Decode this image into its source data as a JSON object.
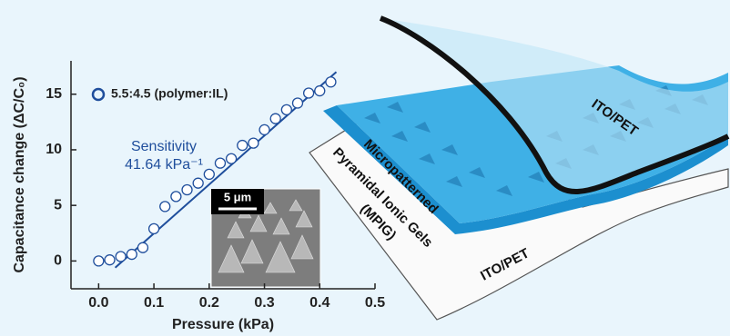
{
  "chart_data": {
    "type": "scatter",
    "x_label": "Pressure (kPa)",
    "y_label": "Capacitance change (ΔC/C₀)",
    "x": [
      0.0,
      0.02,
      0.04,
      0.06,
      0.08,
      0.1,
      0.12,
      0.14,
      0.16,
      0.18,
      0.2,
      0.22,
      0.24,
      0.26,
      0.28,
      0.3,
      0.32,
      0.34,
      0.36,
      0.38,
      0.4,
      0.42
    ],
    "series": [
      {
        "name": "5.5:4.5 (polymer:IL)",
        "color": "#1f4e9c",
        "values": [
          0.0,
          0.1,
          0.4,
          0.6,
          1.2,
          2.9,
          4.9,
          5.8,
          6.4,
          7.0,
          7.8,
          8.8,
          9.2,
          10.4,
          10.6,
          11.8,
          12.8,
          13.6,
          14.2,
          15.1,
          15.3,
          16.1
        ]
      }
    ],
    "fit_line": {
      "x": [
        0.03,
        0.43
      ],
      "values": [
        -0.6,
        17.0
      ],
      "color": "#1f4e9c"
    },
    "annotation": [
      "Sensitivity",
      "41.64 kPa⁻¹"
    ],
    "xlim": [
      -0.05,
      0.5
    ],
    "ylim": [
      -2.5,
      18
    ],
    "xticks": [
      {
        "value": 0,
        "label": "0.0"
      },
      0.1,
      0.2,
      0.3,
      0.4,
      0.5
    ],
    "yticks": [
      0,
      5,
      10,
      15
    ],
    "inset_scale_bar": "5 μm"
  },
  "illustration": {
    "top_film": "ITO/PET",
    "gel_label": [
      "Micropatterned",
      "Pyramidal Ionic Gels",
      "(MPIG)"
    ],
    "bottom_film": "ITO/PET"
  }
}
